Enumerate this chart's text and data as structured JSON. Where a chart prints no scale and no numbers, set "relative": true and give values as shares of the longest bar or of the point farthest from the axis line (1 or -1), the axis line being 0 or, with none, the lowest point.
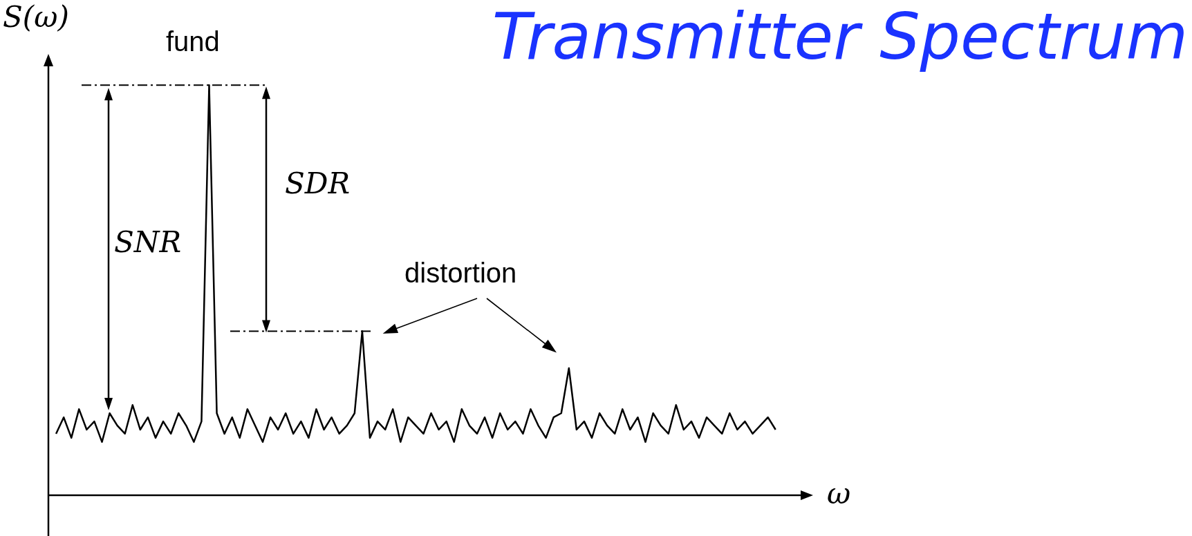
{
  "chart_data": {
    "type": "line",
    "title": "Transmitter Spectrum",
    "xlabel": "ω",
    "ylabel": "S(ω)",
    "relative": true,
    "tick_labels": false,
    "legend": false,
    "marker": "none",
    "line_style": "solid",
    "categories": [
      null,
      null,
      null,
      null,
      null,
      null,
      null,
      null,
      null,
      null,
      null,
      null,
      null,
      null,
      null,
      null,
      null,
      null,
      null,
      null,
      null,
      null,
      null,
      null,
      null,
      null,
      null,
      null,
      null,
      null,
      null,
      null,
      null,
      null,
      null,
      null,
      null,
      null,
      null,
      null,
      null,
      null,
      null,
      null,
      null,
      null,
      null,
      null,
      null,
      null,
      null,
      null,
      null,
      null,
      null,
      null,
      null,
      null,
      null,
      null,
      null,
      null,
      null,
      null,
      null,
      null,
      null,
      null,
      null,
      null,
      null,
      null,
      null,
      null,
      null,
      null,
      null,
      null,
      null,
      null,
      null,
      null,
      null,
      null,
      null,
      null,
      null,
      null,
      null,
      null,
      null,
      null,
      null,
      null,
      null,
      null,
      null,
      null,
      null,
      null
    ],
    "series": [
      {
        "color": "#000000",
        "values": [
          null,
          0.15,
          0.19,
          0.14,
          0.21,
          0.16,
          0.18,
          0.13,
          0.2,
          0.17,
          0.15,
          0.22,
          0.16,
          0.19,
          0.14,
          0.18,
          0.15,
          0.2,
          0.17,
          0.13,
          0.18,
          1,
          0.2,
          0.15,
          0.19,
          0.14,
          0.21,
          0.17,
          0.13,
          0.19,
          0.16,
          0.2,
          0.15,
          0.18,
          0.14,
          0.21,
          0.16,
          0.19,
          0.15,
          0.17,
          0.2,
          0.4,
          0.14,
          0.18,
          0.16,
          0.21,
          0.13,
          0.19,
          0.17,
          0.15,
          0.2,
          0.16,
          0.18,
          0.13,
          0.21,
          0.17,
          0.15,
          0.19,
          0.14,
          0.2,
          0.16,
          0.18,
          0.15,
          0.21,
          0.17,
          0.14,
          0.19,
          0.2,
          0.31,
          0.16,
          0.18,
          0.14,
          0.2,
          0.17,
          0.15,
          0.21,
          0.16,
          0.19,
          0.13,
          0.2,
          0.17,
          0.15,
          0.22,
          0.16,
          0.18,
          0.14,
          0.19,
          0.17,
          0.15,
          0.2,
          0.16,
          0.18,
          0.15,
          0.17,
          0.19,
          0.16,
          null,
          null,
          null,
          null
        ]
      }
    ],
    "ref_lines": [
      {
        "axis": "y",
        "value": 1,
        "line_style": "dashed",
        "color": "#000000"
      },
      {
        "axis": "y",
        "value": 0.4,
        "line_style": "dashed",
        "color": "#000000"
      }
    ],
    "annotations": [
      "fund",
      "SNR",
      "SDR",
      "distortion"
    ]
  }
}
